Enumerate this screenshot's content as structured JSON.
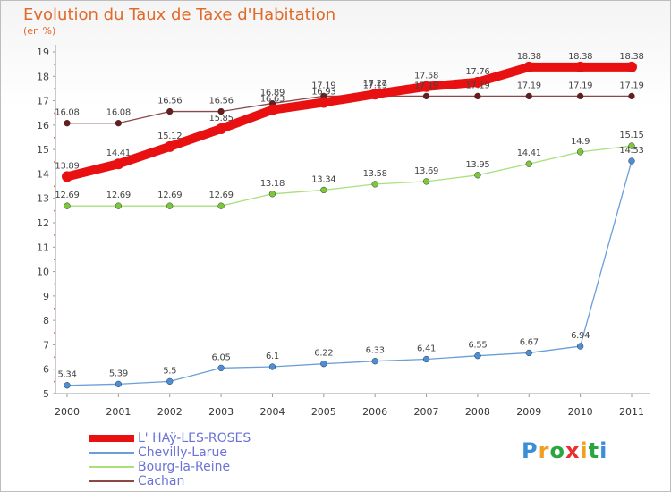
{
  "header": {
    "title": "Evolution du Taux de Taxe d'Habitation",
    "unit": "(en %)"
  },
  "brand": {
    "letters": [
      "P",
      "r",
      "o",
      "x",
      "i",
      "t",
      "i"
    ],
    "colors": [
      "#3a8fd6",
      "#f0a020",
      "#2aa640",
      "#e83030",
      "#f0a020",
      "#2aa640",
      "#3a8fd6"
    ]
  },
  "chart_data": {
    "type": "line",
    "x": [
      "2000",
      "2001",
      "2002",
      "2003",
      "2004",
      "2005",
      "2006",
      "2007",
      "2008",
      "2009",
      "2010",
      "2011"
    ],
    "ylim": [
      5,
      19
    ],
    "yticks": [
      5,
      6,
      7,
      8,
      9,
      10,
      11,
      12,
      13,
      14,
      15,
      16,
      17,
      18,
      19
    ],
    "grid": false,
    "legend_position": "bottom-left",
    "series": [
      {
        "name": "L' HAÿ-LES-ROSES",
        "values": [
          13.89,
          14.41,
          15.12,
          15.85,
          16.63,
          16.93,
          17.27,
          17.58,
          17.76,
          18.38,
          18.38,
          18.38
        ],
        "labels": [
          "13.89",
          "14.41",
          "15.12",
          "15.85",
          "16.63",
          "16.93",
          "17.27",
          "17.58",
          "17.76",
          "18.38",
          "18.38",
          "18.38"
        ],
        "color": "#e81010",
        "style": "thick"
      },
      {
        "name": "Chevilly-Larue",
        "values": [
          5.34,
          5.39,
          5.5,
          6.05,
          6.1,
          6.22,
          6.33,
          6.41,
          6.55,
          6.67,
          6.94,
          14.53
        ],
        "labels": [
          "5.34",
          "5.39",
          "5.5",
          "6.05",
          "6.1",
          "6.22",
          "6.33",
          "6.41",
          "6.55",
          "6.67",
          "6.94",
          "14.53"
        ],
        "color": "#6a9fd8",
        "marker": "#4a90d9",
        "style": "thin"
      },
      {
        "name": "Bourg-la-Reine",
        "values": [
          12.69,
          12.69,
          12.69,
          12.69,
          13.18,
          13.34,
          13.58,
          13.69,
          13.95,
          14.41,
          14.9,
          15.15
        ],
        "labels": [
          "12.69",
          "12.69",
          "12.69",
          "12.69",
          "13.18",
          "13.34",
          "13.58",
          "13.69",
          "13.95",
          "14.41",
          "14.9",
          "15.15"
        ],
        "color": "#a8e07a",
        "marker": "#7cc83c",
        "style": "thin"
      },
      {
        "name": "Cachan",
        "values": [
          16.08,
          16.08,
          16.56,
          16.56,
          16.89,
          17.19,
          17.19,
          17.19,
          17.19,
          17.19,
          17.19,
          17.19
        ],
        "labels": [
          "16.08",
          "16.08",
          "16.56",
          "16.56",
          "16.89",
          "17.19",
          "17.19",
          "17.19",
          "17.19",
          "17.19",
          "17.19",
          "17.19"
        ],
        "color": "#8a4848",
        "marker": "#6a1c1c",
        "style": "thin"
      }
    ]
  }
}
